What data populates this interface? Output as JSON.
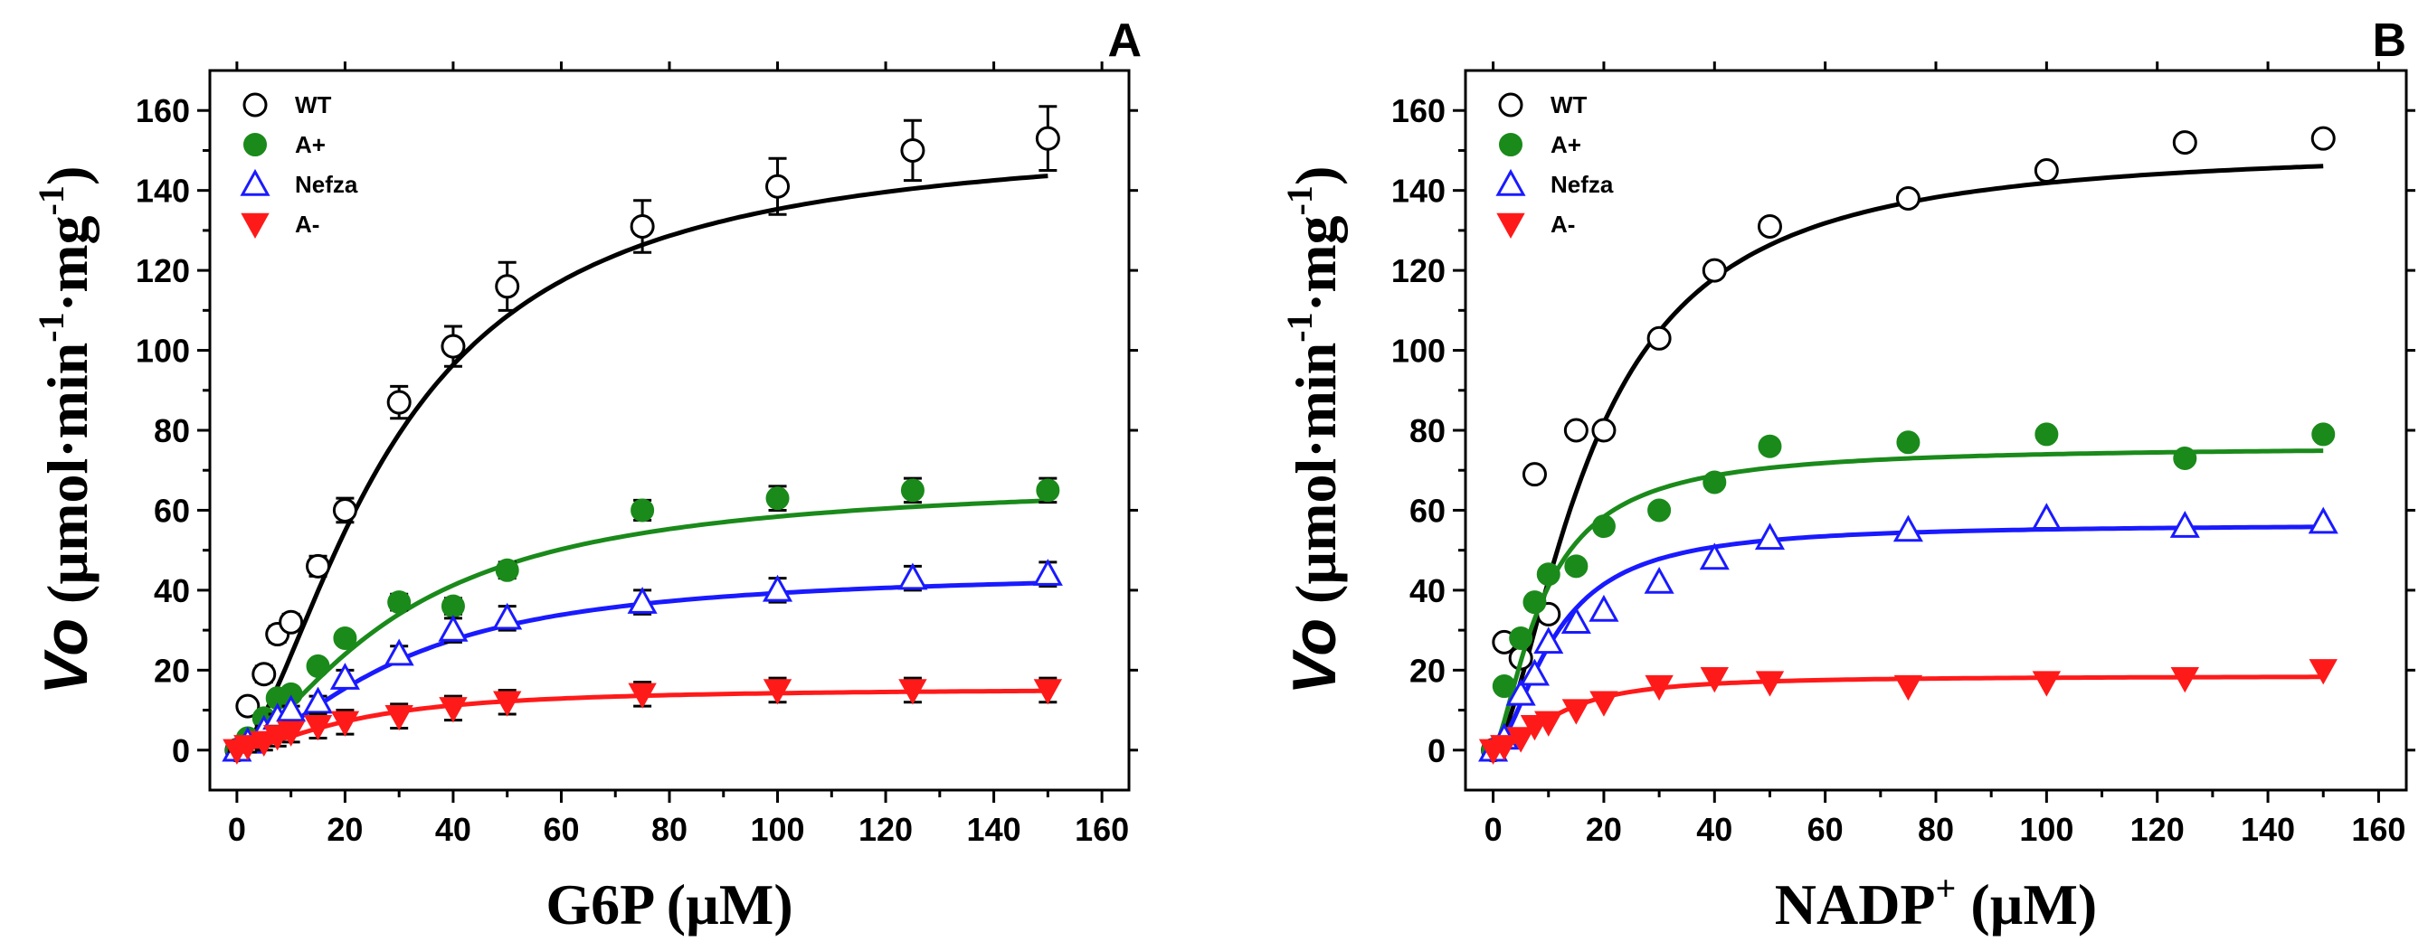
{
  "chart_data": [
    {
      "type": "scatter",
      "panel": "A",
      "xlabel": "G6P (µM)",
      "ylabel_italic": "Vo",
      "ylabel_rest": " (µmol·min-1·mg-1)",
      "xlim": [
        -5,
        165
      ],
      "ylim": [
        -10,
        170
      ],
      "xticks": [
        0,
        20,
        40,
        60,
        80,
        100,
        120,
        140,
        160
      ],
      "yticks": [
        0,
        20,
        40,
        60,
        80,
        100,
        120,
        140,
        160
      ],
      "legend_position": "top-left",
      "series": [
        {
          "name": "WT",
          "marker": "circle-open",
          "color": "#000000",
          "x": [
            0,
            2,
            5,
            7.5,
            10,
            15,
            20,
            30,
            40,
            50,
            75,
            100,
            125,
            150
          ],
          "y": [
            0,
            11,
            19,
            29,
            32,
            46,
            60,
            87,
            101,
            116,
            131,
            141,
            150,
            153
          ],
          "err": [
            1,
            1.5,
            2,
            2,
            2,
            2.5,
            3,
            4,
            5,
            6,
            6.5,
            7,
            7.5,
            8
          ],
          "fit": {
            "model": "hill",
            "vmax": 154,
            "k": 29,
            "n": 1.6
          }
        },
        {
          "name": "A+",
          "marker": "circle-filled",
          "color": "#1a8a1a",
          "x": [
            0,
            2,
            5,
            7.5,
            10,
            15,
            20,
            30,
            40,
            50,
            75,
            100,
            125,
            150
          ],
          "y": [
            0,
            3,
            8,
            13,
            14,
            21,
            28,
            37,
            36,
            45,
            60,
            63,
            65,
            65
          ],
          "err": [
            0.5,
            0.5,
            1,
            1,
            1,
            1.5,
            1.5,
            2,
            2,
            2,
            2.5,
            3,
            3,
            3
          ],
          "fit": {
            "model": "hill",
            "vmax": 68,
            "k": 30,
            "n": 1.5
          }
        },
        {
          "name": "Nefza",
          "marker": "triangle-up-open",
          "color": "#1a1aff",
          "x": [
            0,
            2,
            5,
            7.5,
            10,
            15,
            20,
            30,
            40,
            50,
            75,
            100,
            125,
            150
          ],
          "y": [
            0,
            2,
            5,
            8,
            10,
            12,
            18,
            24,
            30,
            33,
            37,
            40,
            43,
            44
          ],
          "err": [
            0.5,
            0.5,
            1,
            1,
            1,
            1.5,
            2,
            2,
            3,
            3,
            3,
            3,
            3,
            3
          ],
          "fit": {
            "model": "hill",
            "vmax": 45,
            "k": 30,
            "n": 1.6
          }
        },
        {
          "name": "A-",
          "marker": "triangle-down-filled",
          "color": "#ff1a1a",
          "x": [
            0,
            2,
            5,
            7.5,
            10,
            15,
            20,
            30,
            40,
            50,
            75,
            100,
            125,
            150
          ],
          "y": [
            0,
            1,
            2,
            3.5,
            4.5,
            6,
            7,
            8.5,
            10.5,
            12,
            14,
            15,
            15,
            15
          ],
          "err": [
            0.3,
            1.5,
            2,
            2.5,
            2.5,
            3,
            3,
            3,
            3,
            3,
            3,
            3,
            3,
            3
          ],
          "fit": {
            "model": "hill",
            "vmax": 15.5,
            "k": 22,
            "n": 1.6
          }
        }
      ]
    },
    {
      "type": "scatter",
      "panel": "B",
      "xlabel_main": "NADP",
      "xlabel_sup": "+",
      "xlabel_rest": " (µM)",
      "ylabel_italic": "Vo",
      "ylabel_rest": " (µmol·min-1·mg-1)",
      "xlim": [
        -5,
        165
      ],
      "ylim": [
        -10,
        170
      ],
      "xticks": [
        0,
        20,
        40,
        60,
        80,
        100,
        120,
        140,
        160
      ],
      "yticks": [
        0,
        20,
        40,
        60,
        80,
        100,
        120,
        140,
        160
      ],
      "legend_position": "top-left",
      "series": [
        {
          "name": "WT",
          "marker": "circle-open",
          "color": "#000000",
          "x": [
            0,
            2,
            5,
            7.5,
            10,
            15,
            20,
            30,
            40,
            50,
            75,
            100,
            125,
            150
          ],
          "y": [
            0,
            27,
            23,
            69,
            34,
            80,
            80,
            103,
            120,
            131,
            138,
            145,
            152,
            153
          ],
          "fit": {
            "model": "hill",
            "vmax": 151,
            "k": 18,
            "n": 1.6
          }
        },
        {
          "name": "A+",
          "marker": "circle-filled",
          "color": "#1a8a1a",
          "x": [
            0,
            2,
            5,
            7.5,
            10,
            15,
            20,
            30,
            40,
            50,
            75,
            100,
            125,
            150
          ],
          "y": [
            0,
            16,
            28,
            37,
            44,
            46,
            56,
            60,
            67,
            76,
            77,
            79,
            73,
            79
          ],
          "fit": {
            "model": "hill",
            "vmax": 76,
            "k": 9,
            "n": 1.5
          }
        },
        {
          "name": "Nefza",
          "marker": "triangle-up-open",
          "color": "#1a1aff",
          "x": [
            0,
            2,
            5,
            7.5,
            10,
            15,
            20,
            30,
            40,
            50,
            75,
            100,
            125,
            150
          ],
          "y": [
            0,
            3,
            14,
            19,
            27,
            32,
            35,
            42,
            48,
            53,
            55,
            58,
            56,
            57
          ],
          "fit": {
            "model": "hill",
            "vmax": 56.5,
            "k": 11,
            "n": 1.7
          }
        },
        {
          "name": "A-",
          "marker": "triangle-down-filled",
          "color": "#ff1a1a",
          "x": [
            0,
            2,
            5,
            7.5,
            10,
            15,
            20,
            30,
            40,
            50,
            75,
            100,
            125,
            150
          ],
          "y": [
            0,
            1,
            3,
            6,
            7,
            10,
            12,
            16,
            18,
            17,
            16,
            17,
            18,
            20
          ],
          "fit": {
            "model": "hill",
            "vmax": 18.5,
            "k": 12,
            "n": 1.8
          }
        }
      ]
    }
  ]
}
